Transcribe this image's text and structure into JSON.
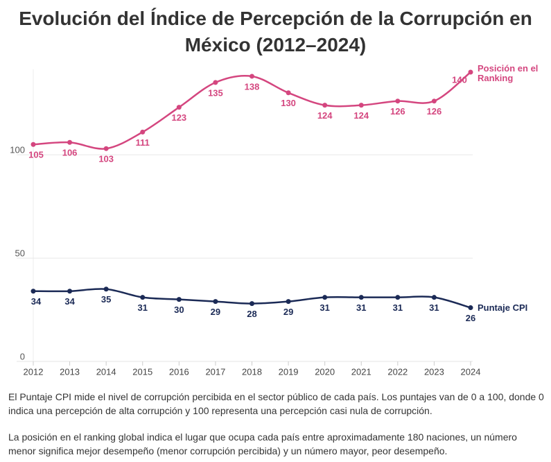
{
  "chart_data": {
    "type": "line",
    "title": "Evolución del Índice de Percepción de la Corrupción en México (2012–2024)",
    "categories": [
      "2012",
      "2013",
      "2014",
      "2015",
      "2016",
      "2017",
      "2018",
      "2019",
      "2020",
      "2021",
      "2022",
      "2023",
      "2024"
    ],
    "series": [
      {
        "name": "Posición en el Ranking",
        "color": "#d4467f",
        "values": [
          105,
          106,
          103,
          111,
          123,
          135,
          138,
          130,
          124,
          124,
          126,
          126,
          140
        ]
      },
      {
        "name": "Puntaje CPI",
        "color": "#1b2a56",
        "values": [
          34,
          34,
          35,
          31,
          30,
          29,
          28,
          29,
          31,
          31,
          31,
          31,
          26
        ]
      }
    ],
    "ylim": [
      0,
      140
    ],
    "yticks": [
      0,
      50,
      100
    ],
    "grid": true,
    "notes": [
      "El Puntaje CPI mide el nivel de corrupción percibida en el sector público de cada país. Los puntajes van de 0 a 100, donde 0 indica una percepción de alta corrupción y 100 representa una percepción casi nula de corrupción.",
      "La posición en el ranking global indica el lugar que ocupa cada país entre aproximadamente 180 naciones, un número menor significa mejor desempeño (menor corrupción percibida) y un número mayor, peor desempeño."
    ]
  }
}
